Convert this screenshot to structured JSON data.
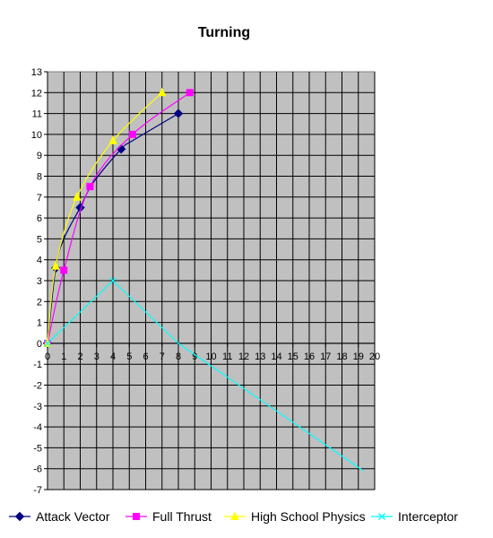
{
  "chart_data": {
    "type": "scatter",
    "title": "Turning",
    "xlabel": "",
    "ylabel": "",
    "xlim": [
      0,
      20
    ],
    "ylim": [
      -7,
      13
    ],
    "x_ticks": [
      "0",
      "1",
      "2",
      "3",
      "4",
      "5",
      "6",
      "7",
      "8",
      "9",
      "10",
      "11",
      "12",
      "13",
      "14",
      "15",
      "16",
      "17",
      "18",
      "19",
      "20"
    ],
    "y_ticks": [
      "13",
      "12",
      "11",
      "10",
      "9",
      "8",
      "7",
      "6",
      "5",
      "4",
      "3",
      "2",
      "1",
      "0",
      "-1",
      "-2",
      "-3",
      "-4",
      "-5",
      "-6",
      "-7"
    ],
    "grid": true,
    "plot_background": "#c0c0c0",
    "legend_position": "bottom",
    "series": [
      {
        "name": "Attack Vector",
        "color": "#000080",
        "marker": "diamond",
        "points": [
          [
            0,
            0
          ],
          [
            0.5,
            3.6
          ],
          [
            1,
            5
          ],
          [
            2,
            6.5
          ],
          [
            2.8,
            7.7
          ],
          [
            4.5,
            9.3
          ],
          [
            5.2,
            9.7
          ],
          [
            8,
            11
          ]
        ],
        "marked": [
          [
            0,
            0
          ],
          [
            0.5,
            3.6
          ],
          [
            2,
            6.5
          ],
          [
            4.5,
            9.3
          ],
          [
            8,
            11
          ]
        ]
      },
      {
        "name": "Full Thrust",
        "color": "#ff00ff",
        "marker": "square",
        "points": [
          [
            0,
            0
          ],
          [
            1,
            3.5
          ],
          [
            2.6,
            7.5
          ],
          [
            5.2,
            10
          ],
          [
            8.7,
            12
          ]
        ],
        "marked": [
          [
            0,
            0
          ],
          [
            1,
            3.5
          ],
          [
            2.6,
            7.5
          ],
          [
            5.2,
            10
          ],
          [
            8.7,
            12
          ]
        ]
      },
      {
        "name": "High School Physics",
        "color": "#ffff00",
        "marker": "triangle",
        "points": [
          [
            0,
            0
          ],
          [
            0.5,
            3.7
          ],
          [
            1.8,
            7
          ],
          [
            4,
            9.7
          ],
          [
            7,
            12
          ]
        ],
        "marked": [
          [
            0,
            0
          ],
          [
            0.5,
            3.7
          ],
          [
            1.8,
            7
          ],
          [
            4,
            9.7
          ],
          [
            7,
            12
          ]
        ]
      },
      {
        "name": "Interceptor",
        "color": "#00ffff",
        "marker": "x",
        "points": [
          [
            0,
            0
          ],
          [
            4,
            3
          ],
          [
            8,
            0
          ],
          [
            19.3,
            -6.1
          ]
        ],
        "marked": [
          [
            0,
            0
          ],
          [
            4,
            3
          ]
        ]
      }
    ]
  }
}
